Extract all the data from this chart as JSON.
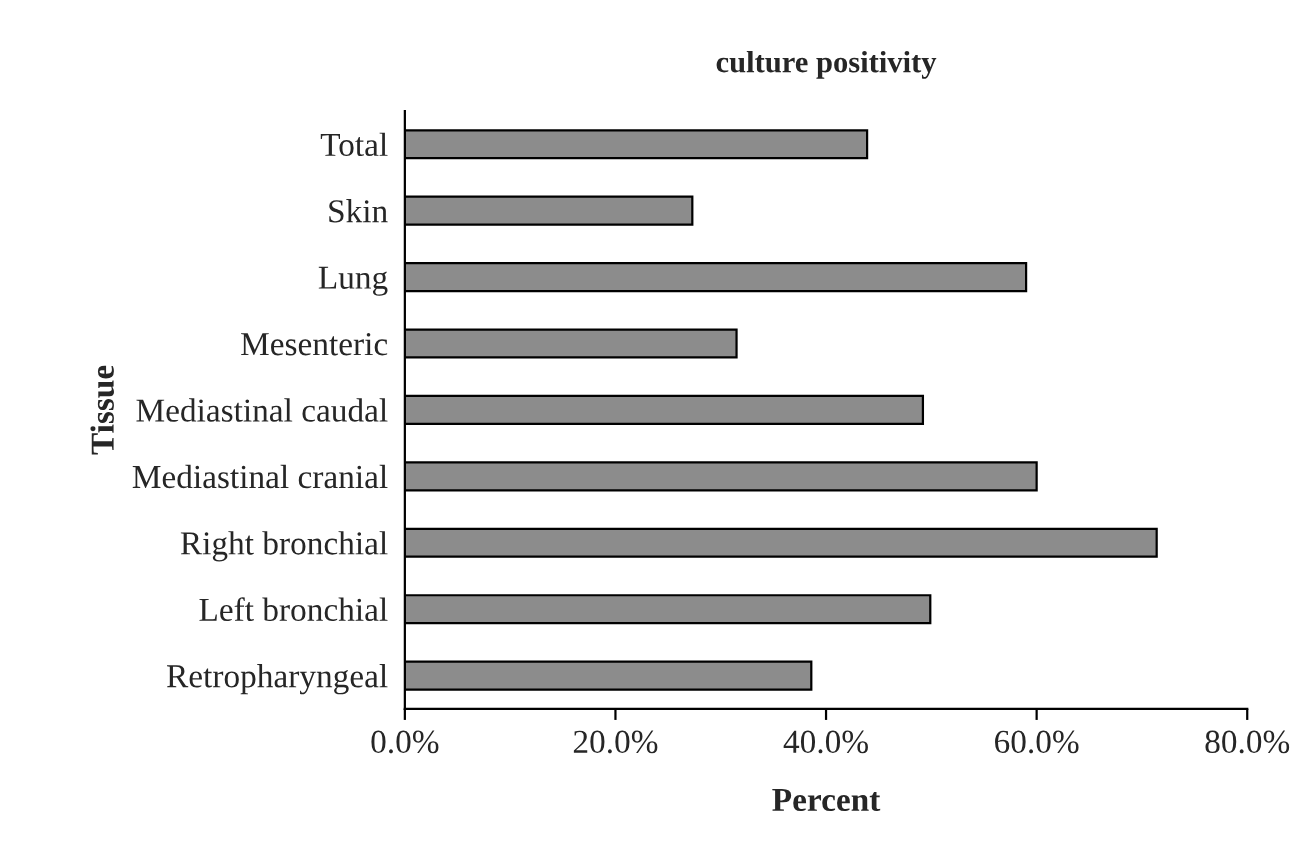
{
  "chart_data": {
    "type": "bar",
    "orientation": "horizontal",
    "title": "culture positivity",
    "xlabel": "Percent",
    "ylabel": "Tissue",
    "categories": [
      "Total",
      "Skin",
      "Lung",
      "Mesenteric",
      "Mediastinal caudal",
      "Mediastinal cranial",
      "Right bronchial",
      "Left bronchial",
      "Retropharyngeal"
    ],
    "values": [
      43.9,
      27.3,
      59.0,
      31.5,
      49.2,
      60.0,
      71.4,
      49.9,
      38.6
    ],
    "color": "#8c8c8c",
    "xlim": [
      0,
      80
    ],
    "xticks": [
      {
        "value": 0,
        "label": "0.0%"
      },
      {
        "value": 20,
        "label": "20.0%"
      },
      {
        "value": 40,
        "label": "40.0%"
      },
      {
        "value": 60,
        "label": "60.0%"
      },
      {
        "value": 80,
        "label": "80.0%"
      }
    ],
    "grid": false,
    "legend": false
  }
}
